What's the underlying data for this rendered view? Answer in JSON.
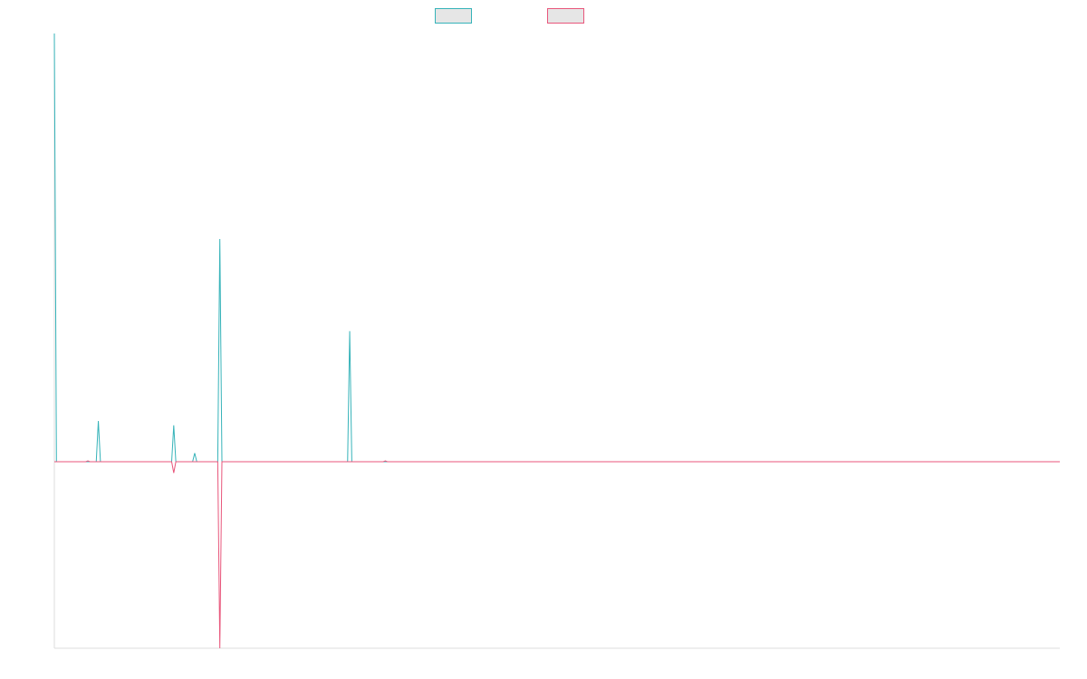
{
  "chart_data": {
    "type": "line",
    "title": "",
    "xlabel": "",
    "ylabel": "",
    "grid": false,
    "legend_position": "top-center",
    "x": [
      0,
      1,
      2,
      3,
      4,
      5,
      6,
      7,
      8,
      9,
      10,
      11,
      12,
      13,
      14,
      15,
      16,
      17,
      18,
      19,
      20,
      21,
      22,
      23,
      24,
      25,
      26,
      27,
      28,
      29,
      30,
      31,
      32,
      33,
      34,
      35,
      36,
      37,
      38,
      39,
      40,
      41,
      42,
      43,
      44,
      45,
      46,
      47,
      48,
      49,
      50,
      51,
      52,
      53,
      54,
      55,
      56,
      57,
      58,
      59,
      60,
      61,
      62,
      63,
      64,
      65,
      66,
      67,
      68,
      69,
      70,
      71,
      72,
      73,
      74,
      75,
      76,
      77,
      78,
      79,
      80,
      81,
      82,
      83,
      84,
      85,
      86,
      87,
      88,
      89,
      90,
      91,
      92,
      93,
      94,
      95,
      96,
      97,
      98,
      99,
      100,
      101,
      102,
      103,
      104,
      105,
      106,
      107,
      108,
      109,
      110,
      111,
      112,
      113,
      114,
      115,
      116,
      117,
      118,
      119,
      120,
      121,
      122,
      123,
      124,
      125,
      126,
      127,
      128,
      129,
      130,
      131,
      132,
      133,
      134,
      135,
      136,
      137,
      138,
      139,
      140,
      141,
      142,
      143,
      144,
      145,
      146,
      147,
      148,
      149,
      150,
      151,
      152,
      153,
      154,
      155,
      156,
      157,
      158,
      159,
      160,
      161,
      162,
      163,
      164,
      165,
      166,
      167,
      168,
      169,
      170,
      171,
      172,
      173,
      174,
      175,
      176,
      177,
      178,
      179,
      180,
      181,
      182,
      183,
      184,
      185,
      186,
      187,
      188,
      189,
      190,
      191,
      192,
      193,
      194,
      195,
      196,
      197,
      198,
      199,
      200,
      201,
      202,
      203,
      204,
      205,
      206,
      207,
      208,
      209,
      210,
      211,
      212,
      213,
      214,
      215,
      216,
      217,
      218,
      219,
      220,
      221,
      222,
      223,
      224,
      225,
      226,
      227,
      228,
      229,
      230,
      231,
      232,
      233,
      234,
      235,
      236,
      237,
      238,
      239,
      240,
      241,
      242,
      243,
      244,
      245,
      246,
      247,
      248,
      249,
      250,
      251,
      252,
      253,
      254,
      255,
      256,
      257,
      258,
      259,
      260,
      261,
      262,
      263,
      264,
      265,
      266,
      267,
      268,
      269,
      270,
      271,
      272,
      273,
      274,
      275,
      276,
      277,
      278,
      279,
      280,
      281,
      282,
      283,
      284,
      285,
      286,
      287,
      288,
      289,
      290,
      291,
      292,
      293,
      294,
      295,
      296,
      297,
      298,
      299,
      300,
      301,
      302,
      303,
      304,
      305,
      306,
      307,
      308,
      309,
      310,
      311,
      312,
      313,
      314,
      315,
      316,
      317,
      318,
      319,
      320,
      321,
      322,
      323,
      324,
      325,
      326,
      327,
      328,
      329,
      330,
      331,
      332,
      333,
      334,
      335,
      336,
      337,
      338,
      339,
      340,
      341,
      342,
      343,
      344,
      345,
      346,
      347,
      348,
      349,
      350,
      351,
      352,
      353,
      354,
      355,
      356,
      357,
      358,
      359,
      360,
      361,
      362,
      363,
      364,
      365,
      366,
      367,
      368,
      369,
      370,
      371,
      372,
      373,
      374,
      375,
      376,
      377,
      378,
      379,
      380,
      381,
      382,
      383,
      384,
      385,
      386,
      387,
      388,
      389,
      390,
      391,
      392,
      393,
      394,
      395,
      396,
      397,
      398,
      399,
      400,
      401,
      402,
      403,
      404,
      405,
      406,
      407,
      408,
      409,
      410,
      411,
      412,
      413,
      414,
      415,
      416,
      417,
      418,
      419,
      420,
      421,
      422,
      423,
      424,
      425,
      426,
      427,
      428,
      429,
      430,
      431,
      432,
      433,
      434,
      435,
      436,
      437,
      438,
      439,
      440,
      441,
      442,
      443,
      444,
      445,
      446,
      447,
      448,
      449,
      450,
      451,
      452,
      453,
      454,
      455,
      456,
      457,
      458,
      459,
      460,
      461,
      462,
      463,
      464,
      465,
      466,
      467,
      468,
      469,
      470,
      471,
      472,
      473,
      474,
      475,
      476,
      477,
      478,
      479,
      480
    ],
    "ylim": [
      -1,
      2
    ],
    "series": [
      {
        "color": "#36b3b9",
        "points": [
          [
            0,
            2
          ],
          [
            1,
            0
          ],
          [
            20,
            0
          ],
          [
            21,
            0.19
          ],
          [
            22,
            0
          ],
          [
            56,
            0
          ],
          [
            57,
            0.17
          ],
          [
            58,
            0
          ],
          [
            66,
            0
          ],
          [
            67,
            0.04
          ],
          [
            68,
            0
          ],
          [
            78,
            0
          ],
          [
            79,
            1.04
          ],
          [
            80,
            0
          ],
          [
            140,
            0
          ],
          [
            141,
            0.61
          ],
          [
            142,
            0
          ],
          [
            480,
            0
          ]
        ]
      },
      {
        "color": "#e8567b",
        "points": [
          [
            0,
            0
          ],
          [
            15,
            0
          ],
          [
            16,
            0.004
          ],
          [
            17,
            0
          ],
          [
            56,
            0
          ],
          [
            57,
            -0.06
          ],
          [
            58,
            0
          ],
          [
            78,
            0
          ],
          [
            79,
            -1
          ],
          [
            80,
            0
          ],
          [
            157,
            0
          ],
          [
            158,
            0.004
          ],
          [
            159,
            0
          ],
          [
            480,
            0
          ]
        ]
      }
    ]
  },
  "legend": {
    "swatch_fill": "#e6e6e6",
    "items": [
      {
        "color": "#36b3b9"
      },
      {
        "color": "#e8567b"
      }
    ]
  },
  "axis_color": "#dddddd"
}
